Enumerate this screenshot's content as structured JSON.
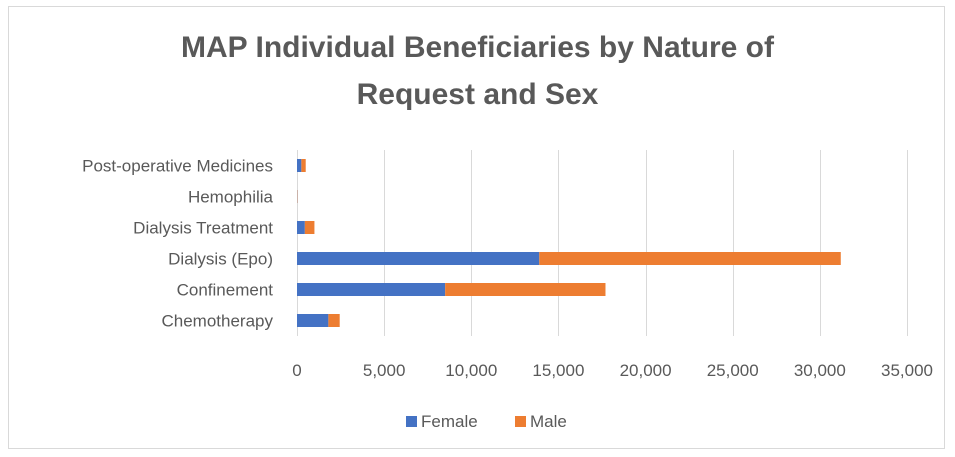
{
  "chart_data": {
    "type": "bar",
    "orientation": "horizontal",
    "stacked": true,
    "title_lines": [
      "MAP Individual Beneficiaries by Nature of",
      "Request and Sex"
    ],
    "categories": [
      "Chemotherapy",
      "Confinement",
      "Dialysis (Epo)",
      "Dialysis Treatment",
      "Hemophilia",
      "Post-operative Medicines"
    ],
    "series": [
      {
        "name": "Female",
        "values": [
          1800,
          8500,
          13900,
          450,
          15,
          250
        ],
        "color": "#4472c4"
      },
      {
        "name": "Male",
        "values": [
          650,
          9200,
          17300,
          550,
          15,
          250
        ],
        "color": "#ed7d31"
      }
    ],
    "xlim": [
      0,
      35000
    ],
    "xticks": [
      "0",
      "5,000",
      "10,000",
      "15,000",
      "20,000",
      "25,000",
      "30,000",
      "35,000"
    ],
    "xtick_values": [
      0,
      5000,
      10000,
      15000,
      20000,
      25000,
      30000,
      35000
    ],
    "grid": true,
    "legend_position": "bottom"
  }
}
